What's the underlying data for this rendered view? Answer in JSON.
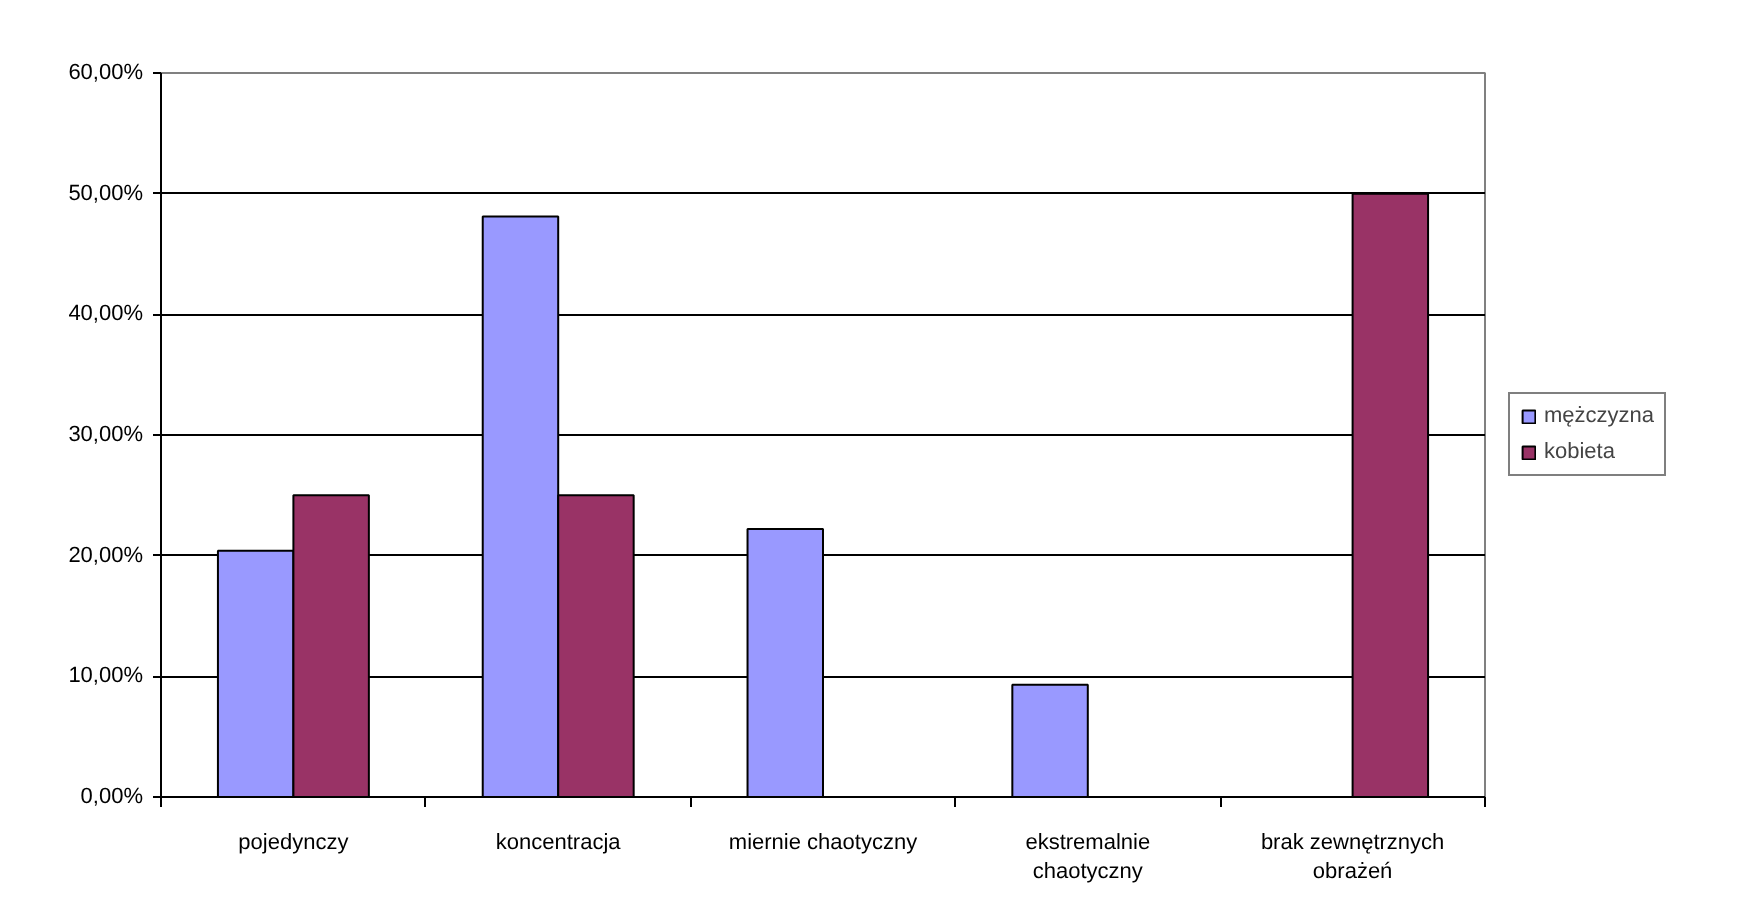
{
  "chart_data": {
    "type": "bar",
    "categories": [
      "pojedynczy",
      "koncentracja",
      "miernie chaotyczny",
      "ekstremalnie chaotyczny",
      "brak zewnętrznych obrażeń"
    ],
    "series": [
      {
        "name": "mężczyzna",
        "color": "#9999ff",
        "values": [
          20.4,
          48.1,
          22.2,
          9.3,
          null
        ]
      },
      {
        "name": "kobieta",
        "color": "#993366",
        "values": [
          25.0,
          25.0,
          null,
          null,
          50.0
        ]
      }
    ],
    "ylim": [
      0,
      60
    ],
    "yticks": [
      {
        "value": 0,
        "label": "0,00%"
      },
      {
        "value": 10,
        "label": "10,00%"
      },
      {
        "value": 20,
        "label": "20,00%"
      },
      {
        "value": 30,
        "label": "30,00%"
      },
      {
        "value": 40,
        "label": "40,00%"
      },
      {
        "value": 50,
        "label": "50,00%"
      },
      {
        "value": 60,
        "label": "60,00%"
      }
    ],
    "grid": "y",
    "legend": "right"
  }
}
